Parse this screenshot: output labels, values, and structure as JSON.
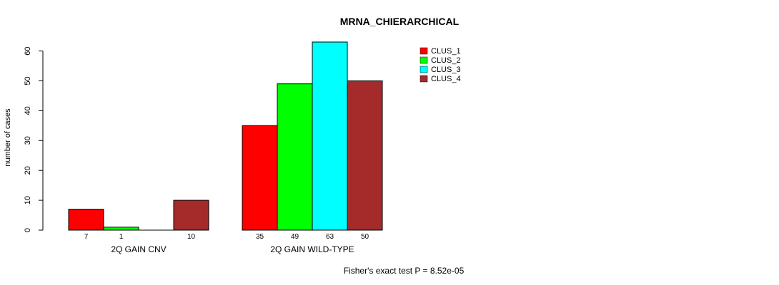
{
  "chart_data": {
    "type": "bar",
    "title": "MRNA_CHIERARCHICAL",
    "xlabel": "",
    "ylabel": "number of cases",
    "ylim": [
      0,
      63
    ],
    "yticks": [
      0,
      10,
      20,
      30,
      40,
      50,
      60
    ],
    "groups": [
      "2Q GAIN CNV",
      "2Q GAIN WILD-TYPE"
    ],
    "series": [
      {
        "name": "CLUS_1",
        "color": "#ff0000",
        "values": [
          7,
          35
        ]
      },
      {
        "name": "CLUS_2",
        "color": "#00ff00",
        "values": [
          1,
          49
        ]
      },
      {
        "name": "CLUS_3",
        "color": "#00ffff",
        "values": [
          0,
          63
        ]
      },
      {
        "name": "CLUS_4",
        "color": "#a52a2a",
        "values": [
          10,
          50
        ]
      }
    ],
    "bar_labels": [
      [
        "7",
        "1",
        "",
        "10"
      ],
      [
        "35",
        "49",
        "63",
        "50"
      ]
    ],
    "legend_position": "top-right",
    "grid": false,
    "footnote": "Fisher's exact test P = 8.52e-05"
  }
}
